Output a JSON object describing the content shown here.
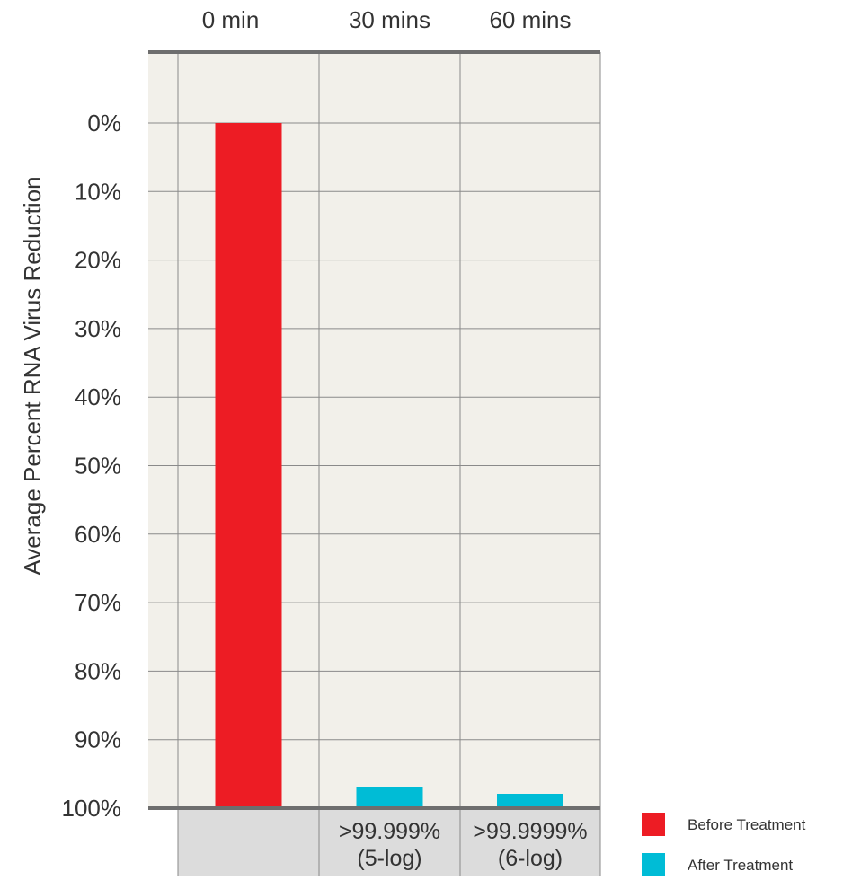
{
  "chart_data": {
    "type": "bar",
    "title": "",
    "xlabel": "",
    "ylabel": "Average Percent RNA Virus Reduction",
    "categories": [
      "0 min",
      "30 mins",
      "60 mins"
    ],
    "y_ticks": [
      "0%",
      "10%",
      "20%",
      "30%",
      "40%",
      "50%",
      "60%",
      "70%",
      "80%",
      "90%",
      "100%"
    ],
    "ylim": [
      0,
      100
    ],
    "y_axis_inverted": true,
    "grid": true,
    "series": [
      {
        "name": "Before Treatment",
        "color": "#ed1c24",
        "values": [
          0,
          null,
          null
        ]
      },
      {
        "name": "After Treatment",
        "color": "#00bcd6",
        "values": [
          null,
          99.999,
          99.9999
        ]
      }
    ],
    "bar_labels": [
      {
        "category": "30 mins",
        "lines": [
          ">99.999%",
          "(5-log)"
        ]
      },
      {
        "category": "60 mins",
        "lines": [
          ">99.9999%",
          "(6-log)"
        ]
      }
    ],
    "legend_position": "bottom-right",
    "background_color": "#f2f0ea",
    "footer_color": "#dcdcdc"
  }
}
